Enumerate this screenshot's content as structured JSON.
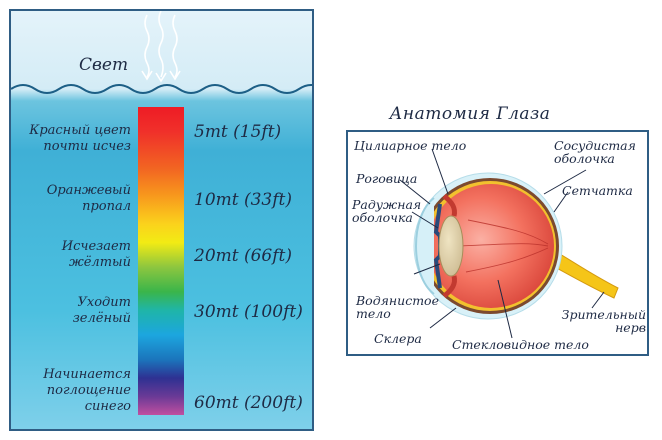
{
  "light_label": "Свет",
  "color_depths": [
    {
      "label": "Красный цвет почти исчез",
      "depth": "5mt (15ft)"
    },
    {
      "label": "Оранжевый пропал",
      "depth": "10mt (33ft)"
    },
    {
      "label": "Исчезает жёлтый",
      "depth": "20mt (66ft)"
    },
    {
      "label": "Уходит зелёный",
      "depth": "30mt (100ft)"
    },
    {
      "label": "Начинается поглощение синего",
      "depth": "60mt (200ft)"
    }
  ],
  "eye": {
    "title": "Анатомия Глаза",
    "labels": {
      "ciliary": "Цилиарное тело",
      "vascular": "Сосудистая оболочка",
      "cornea": "Роговица",
      "retina": "Сетчатка",
      "iris": "Радужная оболочка",
      "aqueous": "Водянистое тело",
      "optic": "Зрительный нерв",
      "sclera": "Склера",
      "vitreous": "Стекловидное тело"
    }
  },
  "colors": {
    "frame": "#2f5d84",
    "water": "#3fb0d6",
    "eyeball": "#f26b5b",
    "optic_nerve": "#f5c518"
  }
}
